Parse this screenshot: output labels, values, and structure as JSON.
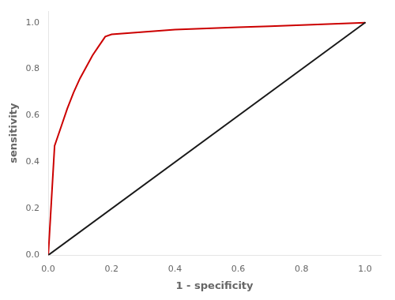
{
  "chart_data": {
    "type": "line",
    "xlabel": "1 - specificity",
    "ylabel": "sensitivity",
    "series": [
      {
        "color": "#1a1a1a",
        "x": [
          0.0,
          1.0
        ],
        "values": [
          0.0,
          1.0
        ]
      },
      {
        "color": "#cc0000",
        "x": [
          0.0,
          0.02,
          0.04,
          0.06,
          0.08,
          0.1,
          0.12,
          0.14,
          0.16,
          0.18,
          0.2,
          0.3,
          0.4,
          0.5,
          0.6,
          0.7,
          0.8,
          0.9,
          1.0
        ],
        "values": [
          0.0,
          0.47,
          0.55,
          0.63,
          0.7,
          0.76,
          0.81,
          0.86,
          0.9,
          0.94,
          0.95,
          0.96,
          0.97,
          0.975,
          0.98,
          0.985,
          0.99,
          0.995,
          1.0
        ]
      }
    ],
    "xlim": [
      0.0,
      1.05
    ],
    "ylim": [
      0.0,
      1.05
    ],
    "xticks": [
      {
        "value": 0.0,
        "label": "0.0"
      },
      0.2,
      0.4,
      0.6,
      0.8,
      {
        "value": 1.0,
        "label": "1.0"
      }
    ],
    "yticks": [
      {
        "value": 0.0,
        "label": "0.0"
      },
      0.2,
      0.4,
      0.6,
      0.8,
      {
        "value": 1.0,
        "label": "1.0"
      }
    ],
    "grid": false
  }
}
